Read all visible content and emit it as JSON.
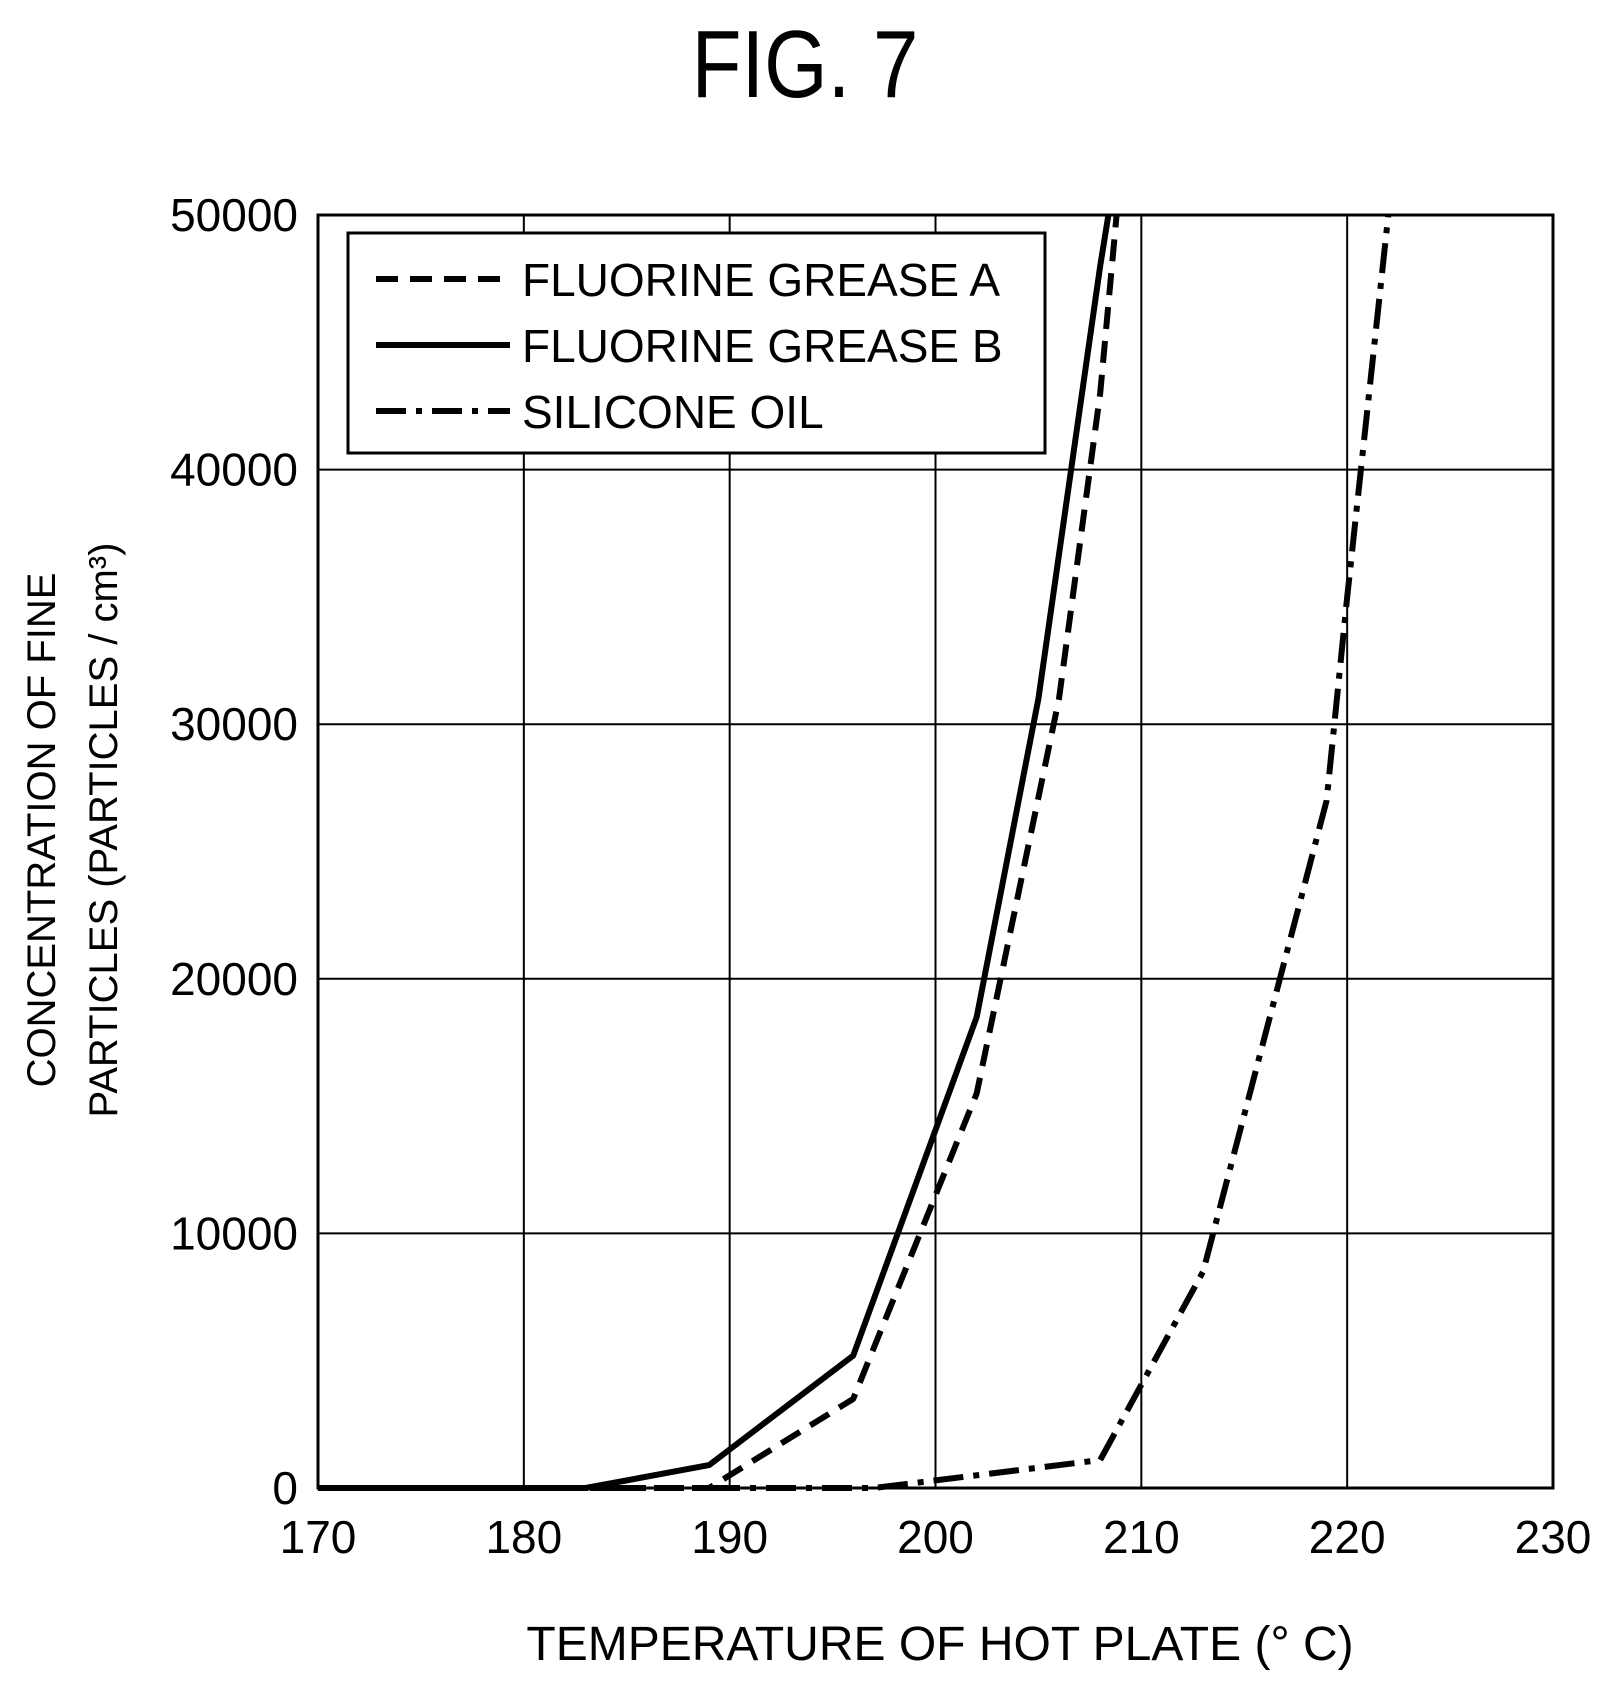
{
  "figure": {
    "title": "FIG. 7"
  },
  "chart_data": {
    "type": "line",
    "title": "FIG. 7",
    "xlabel": "TEMPERATURE OF HOT PLATE (° C)",
    "ylabel_lines": [
      "CONCENTRATION OF FINE",
      "PARTICLES (PARTICLES / cm³)"
    ],
    "xlim": [
      170,
      230
    ],
    "ylim": [
      0,
      50000
    ],
    "x_ticks": [
      170,
      180,
      190,
      200,
      210,
      220,
      230
    ],
    "y_ticks": [
      0,
      10000,
      20000,
      30000,
      40000,
      50000
    ],
    "grid": true,
    "legend_position": "top-left",
    "series": [
      {
        "name": "FLUORINE GREASE A",
        "line_style": "dashed",
        "x": [
          170,
          183,
          189,
          196,
          202,
          206,
          208,
          208.8
        ],
        "y": [
          0,
          0,
          0,
          3500,
          15500,
          31000,
          43000,
          50000
        ]
      },
      {
        "name": "FLUORINE GREASE B",
        "line_style": "solid",
        "x": [
          170,
          183,
          189,
          196,
          202,
          205,
          208,
          208.4
        ],
        "y": [
          0,
          0,
          900,
          5200,
          18500,
          31000,
          48000,
          50000
        ]
      },
      {
        "name": "SILICONE OIL",
        "line_style": "dash-dot",
        "x": [
          170,
          197,
          200,
          208,
          213,
          219,
          220,
          222
        ],
        "y": [
          0,
          0,
          300,
          1100,
          8500,
          27000,
          35000,
          50000
        ]
      }
    ]
  }
}
